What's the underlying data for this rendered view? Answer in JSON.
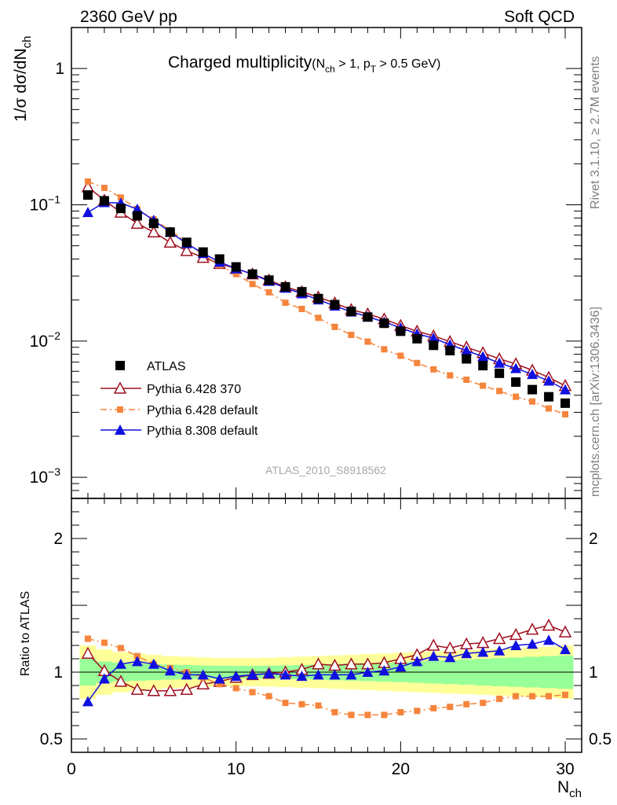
{
  "header": {
    "left": "2360 GeV pp",
    "right": "Soft QCD"
  },
  "side_labels": {
    "rivet": "Rivet 3.1.10, ≥ 2.7M events",
    "source": "mcplots.cern.ch [arXiv:1306.3436]"
  },
  "analysis_id": "ATLAS_2010_S8918562",
  "plot_title": {
    "main": "Charged multiplicity",
    "cut_a": "(N",
    "cut_a_sub": "ch",
    "cut_b": " > 1, p",
    "cut_b_sub": "T",
    "cut_c": " > 0.5 GeV)"
  },
  "colors": {
    "atlas": "#000000",
    "py6_370": "#a01020",
    "py6_default": "#f5843c",
    "py8": "#1010e0",
    "band_inner": "#99ff99",
    "band_outer": "#ffff99"
  },
  "chart_data": [
    {
      "type": "scatter",
      "panel": "main",
      "ylabel": {
        "base": "1/σ dσ/dN",
        "sub": "ch"
      },
      "yscale": "log",
      "ylim": [
        0.0007,
        2.0
      ],
      "xlim": [
        0,
        31
      ],
      "y_ticks": [
        {
          "value": 1,
          "label": "1"
        },
        {
          "value": 0.1,
          "label": "10",
          "sup": "−1"
        },
        {
          "value": 0.01,
          "label": "10",
          "sup": "−2"
        },
        {
          "value": 0.001,
          "label": "10",
          "sup": "−3"
        }
      ],
      "x": [
        1,
        2,
        3,
        4,
        5,
        6,
        7,
        8,
        9,
        10,
        11,
        12,
        13,
        14,
        15,
        16,
        17,
        18,
        19,
        20,
        21,
        22,
        23,
        24,
        25,
        26,
        27,
        28,
        29,
        30
      ],
      "series": [
        {
          "name": "ATLAS",
          "marker": "square",
          "values": [
            0.118,
            0.107,
            0.094,
            0.083,
            0.073,
            0.063,
            0.053,
            0.045,
            0.04,
            0.035,
            0.031,
            0.028,
            0.025,
            0.023,
            0.0205,
            0.0185,
            0.0165,
            0.015,
            0.0135,
            0.0118,
            0.0104,
            0.0093,
            0.0085,
            0.0074,
            0.0066,
            0.0058,
            0.005,
            0.0044,
            0.0039,
            0.0035
          ]
        },
        {
          "name": "Pythia 6.428 370",
          "marker": "open-triangle",
          "values": [
            0.135,
            0.108,
            0.088,
            0.073,
            0.063,
            0.053,
            0.046,
            0.041,
            0.037,
            0.034,
            0.031,
            0.028,
            0.025,
            0.023,
            0.021,
            0.019,
            0.017,
            0.0158,
            0.0145,
            0.013,
            0.0118,
            0.0109,
            0.0099,
            0.009,
            0.0082,
            0.0074,
            0.0068,
            0.0061,
            0.0054,
            0.0047
          ]
        },
        {
          "name": "Pythia 6.428 default",
          "marker": "small-square",
          "values": [
            0.148,
            0.133,
            0.113,
            0.093,
            0.078,
            0.065,
            0.053,
            0.043,
            0.036,
            0.031,
            0.0262,
            0.0228,
            0.0191,
            0.0172,
            0.0148,
            0.0127,
            0.0111,
            0.0099,
            0.0087,
            0.0078,
            0.0069,
            0.0062,
            0.0056,
            0.0052,
            0.0047,
            0.0043,
            0.0039,
            0.0036,
            0.0032,
            0.0029
          ]
        },
        {
          "name": "Pythia 8.308 default",
          "marker": "filled-triangle",
          "values": [
            0.088,
            0.104,
            0.103,
            0.093,
            0.077,
            0.063,
            0.052,
            0.044,
            0.038,
            0.034,
            0.031,
            0.0275,
            0.0245,
            0.0223,
            0.0201,
            0.0181,
            0.0164,
            0.0151,
            0.0138,
            0.0125,
            0.0113,
            0.0105,
            0.0094,
            0.0085,
            0.0077,
            0.0069,
            0.0063,
            0.0057,
            0.0051,
            0.0044
          ]
        }
      ]
    },
    {
      "type": "scatter",
      "panel": "ratio",
      "ylabel": "Ratio to ATLAS",
      "xlabel": {
        "base": "N",
        "sub": "ch"
      },
      "ylim": [
        0.4,
        2.3
      ],
      "xlim": [
        0,
        31
      ],
      "x_ticks": [
        0,
        10,
        20,
        30
      ],
      "y_ticks": [
        {
          "value": 2,
          "label": "2"
        },
        {
          "value": 1,
          "label": "1"
        },
        {
          "value": 0.5,
          "label": "0.5"
        }
      ],
      "x": [
        1,
        2,
        3,
        4,
        5,
        6,
        7,
        8,
        9,
        10,
        11,
        12,
        13,
        14,
        15,
        16,
        17,
        18,
        19,
        20,
        21,
        22,
        23,
        24,
        25,
        26,
        27,
        28,
        29,
        30
      ],
      "band_inner": [
        0.1,
        0.08,
        0.07,
        0.065,
        0.06,
        0.056,
        0.053,
        0.05,
        0.048,
        0.047,
        0.047,
        0.048,
        0.05,
        0.053,
        0.056,
        0.06,
        0.063,
        0.067,
        0.071,
        0.075,
        0.08,
        0.085,
        0.09,
        0.095,
        0.1,
        0.105,
        0.11,
        0.115,
        0.12,
        0.125
      ],
      "band_outer": [
        0.2,
        0.17,
        0.15,
        0.14,
        0.13,
        0.12,
        0.115,
        0.11,
        0.105,
        0.105,
        0.105,
        0.108,
        0.112,
        0.116,
        0.12,
        0.125,
        0.13,
        0.135,
        0.14,
        0.145,
        0.15,
        0.155,
        0.16,
        0.165,
        0.17,
        0.175,
        0.18,
        0.185,
        0.19,
        0.2
      ],
      "series": [
        {
          "name": "Pythia 6.428 370",
          "values": [
            1.14,
            1.01,
            0.93,
            0.87,
            0.86,
            0.86,
            0.87,
            0.91,
            0.93,
            0.96,
            0.98,
            0.99,
            1.0,
            1.02,
            1.06,
            1.05,
            1.06,
            1.06,
            1.07,
            1.1,
            1.13,
            1.2,
            1.18,
            1.21,
            1.22,
            1.25,
            1.28,
            1.32,
            1.35,
            1.3
          ]
        },
        {
          "name": "Pythia 6.428 default",
          "values": [
            1.25,
            1.22,
            1.18,
            1.12,
            1.06,
            1.03,
            1.0,
            0.96,
            0.91,
            0.88,
            0.85,
            0.82,
            0.77,
            0.76,
            0.75,
            0.7,
            0.68,
            0.68,
            0.68,
            0.7,
            0.71,
            0.73,
            0.74,
            0.76,
            0.77,
            0.8,
            0.82,
            0.82,
            0.82,
            0.83
          ]
        },
        {
          "name": "Pythia 8.308 default",
          "values": [
            0.78,
            0.95,
            1.06,
            1.08,
            1.06,
            1.01,
            0.98,
            0.98,
            0.95,
            0.97,
            0.98,
            0.99,
            0.98,
            0.97,
            0.98,
            0.98,
            0.98,
            1.0,
            1.01,
            1.04,
            1.08,
            1.12,
            1.11,
            1.14,
            1.15,
            1.16,
            1.2,
            1.21,
            1.24,
            1.17
          ]
        }
      ]
    }
  ]
}
